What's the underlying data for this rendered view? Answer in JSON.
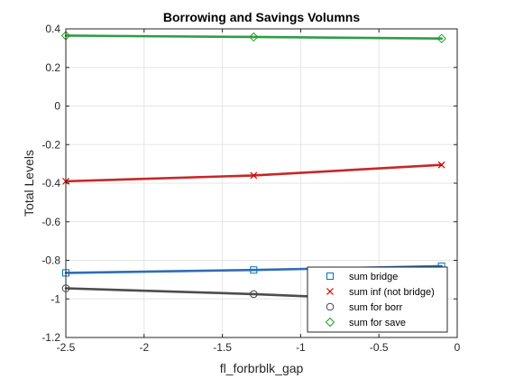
{
  "chart_data": {
    "type": "line",
    "title": "Borrowing and Savings Volumns",
    "xlabel": "fl_forbrblk_gap",
    "ylabel": "Total Levels",
    "xlim": [
      -2.5,
      0
    ],
    "ylim": [
      -1.2,
      0.4
    ],
    "x_ticks": [
      -2.5,
      -2,
      -1.5,
      -1,
      -0.5,
      0
    ],
    "x_tick_labels": [
      "-2.5",
      "-2",
      "-1.5",
      "-1",
      "-0.5",
      "0"
    ],
    "y_ticks": [
      -1.2,
      -1,
      -0.8,
      -0.6,
      -0.4,
      -0.2,
      0,
      0.2,
      0.4
    ],
    "y_tick_labels": [
      "-1.2",
      "-1",
      "-0.8",
      "-0.6",
      "-0.4",
      "-0.2",
      "0",
      "0.2",
      "0.4"
    ],
    "grid": true,
    "legend_position": "bottom-right",
    "x": [
      -2.5,
      -1.3,
      -0.1
    ],
    "series": [
      {
        "name": "sum bridge",
        "values": [
          -0.865,
          -0.85,
          -0.83
        ],
        "marker": "square",
        "marker_color": "#0072BD",
        "line_color": "#2F6DB5"
      },
      {
        "name": "sum inf (not bridge)",
        "values": [
          -0.39,
          -0.36,
          -0.305
        ],
        "marker": "x",
        "marker_color": "#D00000",
        "line_color": "#C62828"
      },
      {
        "name": "sum for borr",
        "values": [
          -0.945,
          -0.975,
          -1.015
        ],
        "marker": "circle",
        "marker_color": "#404040",
        "line_color": "#4D4D4D"
      },
      {
        "name": "sum for save",
        "values": [
          0.365,
          0.358,
          0.35
        ],
        "marker": "diamond",
        "marker_color": "#20A020",
        "line_color": "#2E9E44"
      }
    ]
  }
}
